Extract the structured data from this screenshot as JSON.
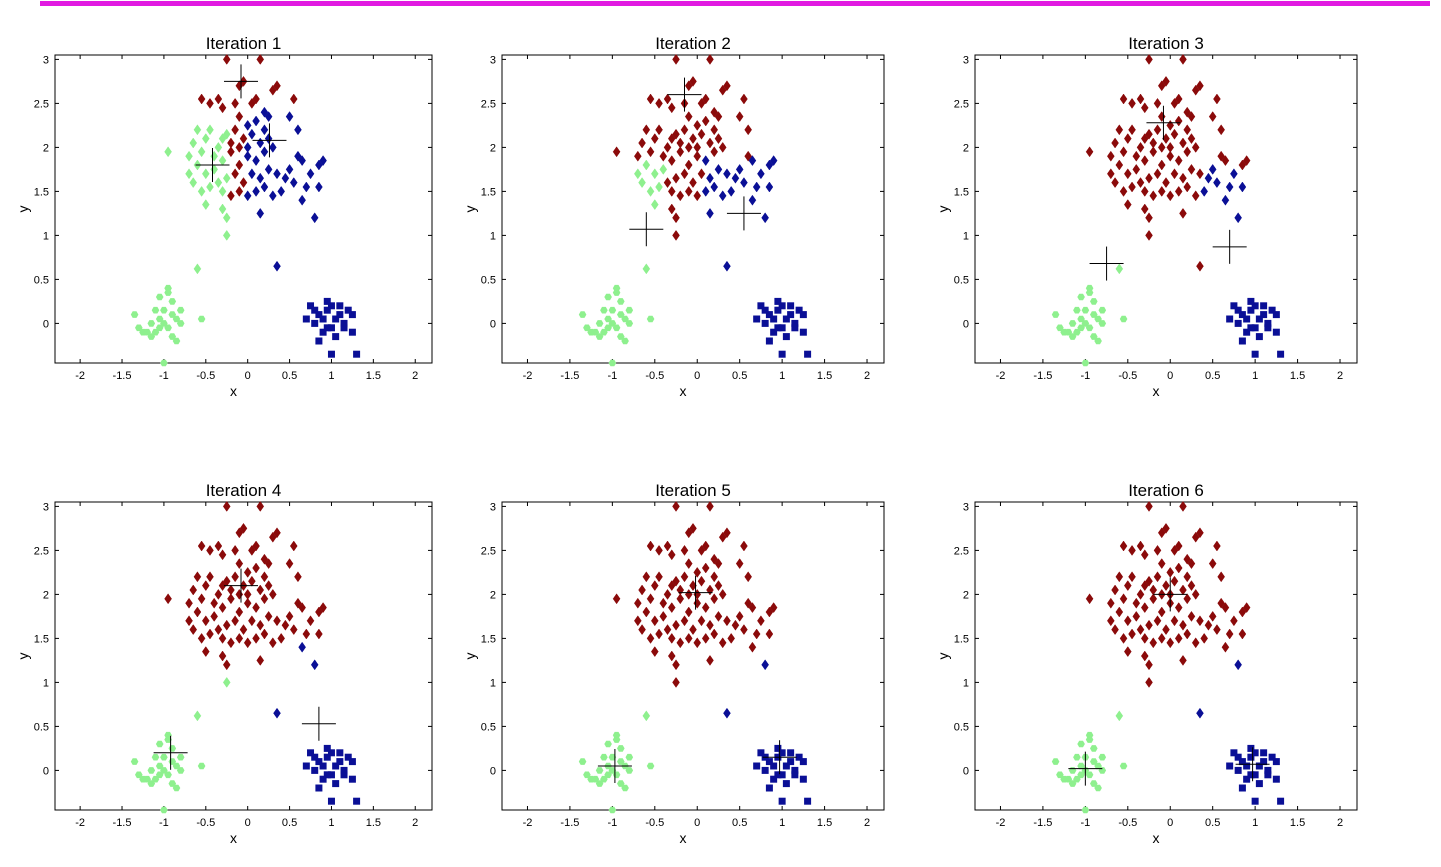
{
  "colors": {
    "top_bar": "#e11ae1",
    "cluster_red": "#8b0a0a",
    "cluster_blue": "#0a0f96",
    "cluster_green": "#8ef08e",
    "centroid": "#000000"
  },
  "markers": {
    "blue_upper": "diamond",
    "blue_lower": "square",
    "red": "diamond",
    "green_upper": "diamond",
    "green_lower": "hexagon"
  },
  "points": {
    "upper": [
      [
        -0.35,
        2.0
      ],
      [
        -0.3,
        2.1
      ],
      [
        -0.25,
        2.15
      ],
      [
        -0.2,
        2.05
      ],
      [
        -0.15,
        2.2
      ],
      [
        -0.1,
        2.0
      ],
      [
        -0.05,
        2.1
      ],
      [
        0.0,
        2.25
      ],
      [
        0.05,
        2.15
      ],
      [
        0.1,
        2.3
      ],
      [
        -0.4,
        1.9
      ],
      [
        -0.3,
        1.85
      ],
      [
        -0.2,
        1.95
      ],
      [
        -0.1,
        1.8
      ],
      [
        0.0,
        1.9
      ],
      [
        0.1,
        1.85
      ],
      [
        0.2,
        1.95
      ],
      [
        0.3,
        2.0
      ],
      [
        0.25,
        2.1
      ],
      [
        0.15,
        2.05
      ],
      [
        -0.5,
        1.7
      ],
      [
        -0.4,
        1.75
      ],
      [
        -0.35,
        1.6
      ],
      [
        -0.25,
        1.65
      ],
      [
        -0.15,
        1.7
      ],
      [
        -0.05,
        1.6
      ],
      [
        0.05,
        1.7
      ],
      [
        0.15,
        1.65
      ],
      [
        0.25,
        1.75
      ],
      [
        0.35,
        1.7
      ],
      [
        0.45,
        1.65
      ],
      [
        0.5,
        1.75
      ],
      [
        0.55,
        1.6
      ],
      [
        0.4,
        1.5
      ],
      [
        0.3,
        1.45
      ],
      [
        0.2,
        1.55
      ],
      [
        0.1,
        1.5
      ],
      [
        0.0,
        1.45
      ],
      [
        -0.1,
        1.5
      ],
      [
        -0.2,
        1.45
      ],
      [
        -0.3,
        1.5
      ],
      [
        -0.45,
        1.55
      ],
      [
        -0.55,
        1.5
      ],
      [
        -0.65,
        1.6
      ],
      [
        -0.6,
        1.8
      ],
      [
        -0.55,
        1.95
      ],
      [
        -0.5,
        2.1
      ],
      [
        -0.45,
        2.2
      ],
      [
        -0.6,
        2.2
      ],
      [
        -0.65,
        2.05
      ],
      [
        -0.7,
        1.9
      ],
      [
        -0.7,
        1.7
      ],
      [
        -0.5,
        1.35
      ],
      [
        -0.3,
        1.3
      ],
      [
        -0.25,
        1.2
      ],
      [
        0.15,
        1.25
      ],
      [
        -0.25,
        1.0
      ],
      [
        -0.25,
        3.0
      ],
      [
        0.15,
        3.0
      ],
      [
        -0.05,
        2.75
      ],
      [
        -0.1,
        2.7
      ],
      [
        0.3,
        2.65
      ],
      [
        0.35,
        2.7
      ],
      [
        -0.35,
        2.55
      ],
      [
        -0.3,
        2.45
      ],
      [
        0.05,
        2.5
      ],
      [
        0.2,
        2.4
      ],
      [
        0.25,
        2.35
      ],
      [
        -0.45,
        2.5
      ],
      [
        -0.55,
        2.55
      ],
      [
        -0.15,
        2.5
      ],
      [
        0.1,
        2.55
      ],
      [
        0.55,
        2.55
      ],
      [
        0.5,
        2.35
      ],
      [
        0.6,
        2.2
      ],
      [
        -0.95,
        1.95
      ],
      [
        0.6,
        1.9
      ],
      [
        0.65,
        1.85
      ],
      [
        0.75,
        1.7
      ],
      [
        0.7,
        1.55
      ],
      [
        0.85,
        1.8
      ],
      [
        0.9,
        1.85
      ],
      [
        0.85,
        1.55
      ],
      [
        0.8,
        1.2
      ],
      [
        0.65,
        1.4
      ],
      [
        0.35,
        0.65
      ],
      [
        -0.6,
        0.62
      ],
      [
        -0.1,
        2.35
      ],
      [
        0.0,
        2.0
      ],
      [
        0.2,
        2.2
      ]
    ],
    "lower_green": [
      [
        -1.0,
        0.0
      ],
      [
        -1.05,
        0.05
      ],
      [
        -0.95,
        -0.05
      ],
      [
        -1.1,
        -0.1
      ],
      [
        -1.2,
        -0.1
      ],
      [
        -1.3,
        -0.05
      ],
      [
        -1.15,
        0.0
      ],
      [
        -1.0,
        0.15
      ],
      [
        -0.9,
        0.25
      ],
      [
        -0.95,
        0.35
      ],
      [
        -1.05,
        0.3
      ],
      [
        -0.85,
        0.05
      ],
      [
        -0.8,
        0.0
      ],
      [
        -0.9,
        -0.15
      ],
      [
        -1.15,
        -0.15
      ],
      [
        -1.25,
        -0.1
      ],
      [
        -1.35,
        0.1
      ],
      [
        -0.55,
        0.05
      ],
      [
        -1.0,
        -0.45
      ],
      [
        -0.85,
        -0.2
      ],
      [
        -1.1,
        0.15
      ],
      [
        -0.9,
        0.1
      ],
      [
        -0.95,
        0.4
      ],
      [
        -1.05,
        -0.05
      ],
      [
        -0.8,
        0.15
      ]
    ],
    "lower_blue": [
      [
        0.75,
        0.2
      ],
      [
        0.85,
        0.1
      ],
      [
        0.95,
        0.15
      ],
      [
        1.05,
        0.05
      ],
      [
        1.15,
        0.0
      ],
      [
        1.25,
        0.1
      ],
      [
        1.1,
        0.2
      ],
      [
        1.0,
        -0.05
      ],
      [
        0.9,
        -0.1
      ],
      [
        0.8,
        0.0
      ],
      [
        0.7,
        0.05
      ],
      [
        0.85,
        -0.2
      ],
      [
        1.0,
        0.2
      ],
      [
        1.2,
        0.15
      ],
      [
        1.25,
        -0.1
      ],
      [
        1.05,
        -0.15
      ],
      [
        0.95,
        -0.05
      ],
      [
        1.0,
        -0.35
      ],
      [
        1.3,
        -0.35
      ],
      [
        0.9,
        0.05
      ],
      [
        1.1,
        0.1
      ],
      [
        0.8,
        0.15
      ],
      [
        1.15,
        -0.05
      ],
      [
        0.95,
        0.25
      ]
    ]
  },
  "iterations": [
    {
      "title": "Iteration 1",
      "centroids": [
        [
          -0.08,
          2.75
        ],
        [
          -0.42,
          1.8
        ],
        [
          0.26,
          2.08
        ]
      ]
    },
    {
      "title": "Iteration 2",
      "centroids": [
        [
          -0.15,
          2.6
        ],
        [
          -0.6,
          1.07
        ],
        [
          0.55,
          1.25
        ]
      ]
    },
    {
      "title": "Iteration 3",
      "centroids": [
        [
          -0.08,
          2.28
        ],
        [
          -0.75,
          0.68
        ],
        [
          0.7,
          0.87
        ]
      ]
    },
    {
      "title": "Iteration 4",
      "centroids": [
        [
          -0.08,
          2.1
        ],
        [
          -0.92,
          0.2
        ],
        [
          0.85,
          0.53
        ]
      ]
    },
    {
      "title": "Iteration 5",
      "centroids": [
        [
          -0.02,
          2.02
        ],
        [
          -0.97,
          0.05
        ],
        [
          0.97,
          0.15
        ]
      ]
    },
    {
      "title": "Iteration 6",
      "centroids": [
        [
          0.0,
          2.0
        ],
        [
          -1.0,
          0.02
        ],
        [
          0.97,
          0.07
        ]
      ]
    }
  ],
  "chart_data": [
    {
      "type": "scatter",
      "title": "Iteration 1",
      "xlabel": "x",
      "ylabel": "y",
      "xlim": [
        -2.3,
        2.2
      ],
      "ylim": [
        -0.45,
        3.05
      ],
      "x_ticks": [
        "-2",
        "-1.5",
        "-1",
        "-0.5",
        "0",
        "0.5",
        "1",
        "1.5",
        "2"
      ],
      "y_ticks": [
        "0",
        "0.5",
        "1",
        "1.5",
        "2",
        "2.5",
        "3"
      ]
    },
    {
      "type": "scatter",
      "title": "Iteration 2",
      "xlabel": "x",
      "ylabel": "y",
      "xlim": [
        -2.3,
        2.2
      ],
      "ylim": [
        -0.45,
        3.05
      ],
      "x_ticks": [
        "-2",
        "-1.5",
        "-1",
        "-0.5",
        "0",
        "0.5",
        "1",
        "1.5",
        "2"
      ],
      "y_ticks": [
        "0",
        "0.5",
        "1",
        "1.5",
        "2",
        "2.5",
        "3"
      ]
    },
    {
      "type": "scatter",
      "title": "Iteration 3",
      "xlabel": "x",
      "ylabel": "y",
      "xlim": [
        -2.3,
        2.2
      ],
      "ylim": [
        -0.45,
        3.05
      ],
      "x_ticks": [
        "-2",
        "-1.5",
        "-1",
        "-0.5",
        "0",
        "0.5",
        "1",
        "1.5",
        "2"
      ],
      "y_ticks": [
        "0",
        "0.5",
        "1",
        "1.5",
        "2",
        "2.5",
        "3"
      ]
    },
    {
      "type": "scatter",
      "title": "Iteration 4",
      "xlabel": "x",
      "ylabel": "y",
      "xlim": [
        -2.3,
        2.2
      ],
      "ylim": [
        -0.45,
        3.05
      ],
      "x_ticks": [
        "-2",
        "-1.5",
        "-1",
        "-0.5",
        "0",
        "0.5",
        "1",
        "1.5",
        "2"
      ],
      "y_ticks": [
        "0",
        "0.5",
        "1",
        "1.5",
        "2",
        "2.5",
        "3"
      ]
    },
    {
      "type": "scatter",
      "title": "Iteration 5",
      "xlabel": "x",
      "ylabel": "y",
      "xlim": [
        -2.3,
        2.2
      ],
      "ylim": [
        -0.45,
        3.05
      ],
      "x_ticks": [
        "-2",
        "-1.5",
        "-1",
        "-0.5",
        "0",
        "0.5",
        "1",
        "1.5",
        "2"
      ],
      "y_ticks": [
        "0",
        "0.5",
        "1",
        "1.5",
        "2",
        "2.5",
        "3"
      ]
    },
    {
      "type": "scatter",
      "title": "Iteration 6",
      "xlabel": "x",
      "ylabel": "y",
      "xlim": [
        -2.3,
        2.2
      ],
      "ylim": [
        -0.45,
        3.05
      ],
      "x_ticks": [
        "-2",
        "-1.5",
        "-1",
        "-0.5",
        "0",
        "0.5",
        "1",
        "1.5",
        "2"
      ],
      "y_ticks": [
        "0",
        "0.5",
        "1",
        "1.5",
        "2",
        "2.5",
        "3"
      ]
    }
  ]
}
